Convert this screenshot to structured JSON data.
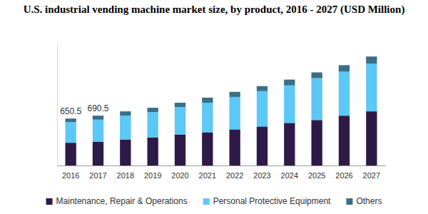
{
  "chart_data": {
    "type": "bar",
    "title": "U.S. industrial vending machine market size, by product, 2016 - 2027 (USD Million)",
    "categories": [
      "2016",
      "2017",
      "2018",
      "2019",
      "2020",
      "2021",
      "2022",
      "2023",
      "2024",
      "2025",
      "2026",
      "2027"
    ],
    "series": [
      {
        "name": "Maintenance, Repair & Operations",
        "color": "#2d1a47",
        "values": [
          315,
          330,
          360,
          390,
          430,
          460,
          500,
          540,
          590,
          630,
          690,
          750
        ]
      },
      {
        "name": "Personal Protective Equipment",
        "color": "#5bc8f5",
        "values": [
          285.5,
          305,
          330,
          350,
          380,
          410,
          450,
          490,
          520,
          580,
          610,
          660
        ]
      },
      {
        "name": "Others",
        "color": "#3c6e85",
        "values": [
          50,
          55.5,
          60,
          60,
          60,
          70,
          70,
          70,
          80,
          80,
          90,
          100
        ]
      }
    ],
    "annotations": [
      {
        "category": "2016",
        "value": 650.5,
        "text": "650.5"
      },
      {
        "category": "2017",
        "value": 690.5,
        "text": "690.5"
      }
    ],
    "ylim": [
      0,
      1700
    ],
    "stacked": true,
    "legend": "bottom",
    "tick_labels": "x",
    "grid": false
  }
}
